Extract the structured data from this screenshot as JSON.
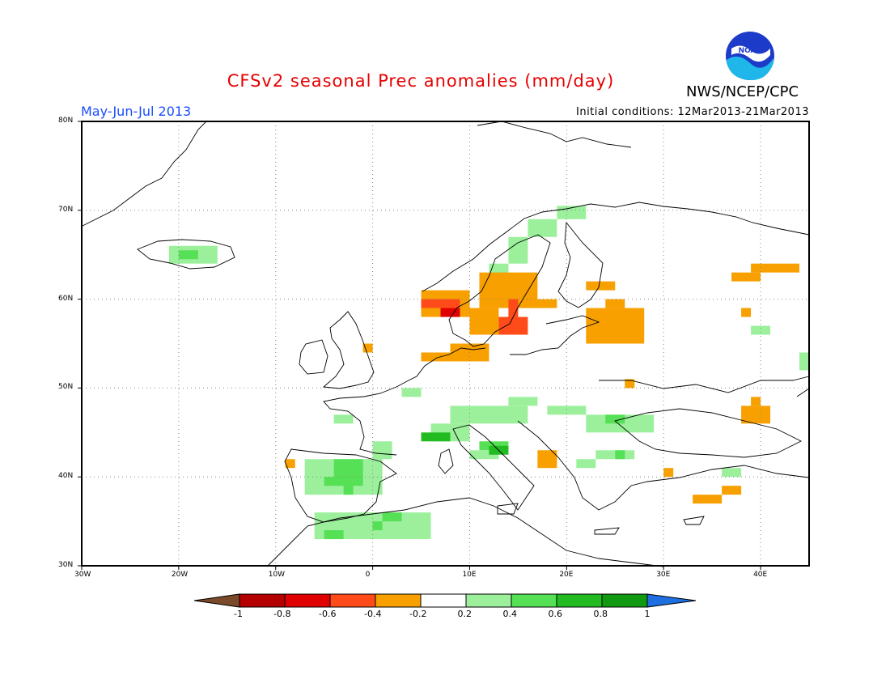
{
  "header": {
    "title": "CFSv2 seasonal Prec anomalies (mm/day)",
    "period": "May-Jun-Jul 2013",
    "initial_conditions": "Initial conditions: 12Mar2013-21Mar2013",
    "agency": "NWS/NCEP/CPC",
    "logo_text": "NOAA"
  },
  "map": {
    "region": "Europe",
    "lon_range": [
      -30,
      45
    ],
    "lat_range": [
      30,
      80
    ],
    "lat_labels": [
      "80N",
      "70N",
      "60N",
      "50N",
      "40N",
      "30N"
    ],
    "lon_labels": [
      "30W",
      "20W",
      "10W",
      "0",
      "10E",
      "20E",
      "30E",
      "40E"
    ],
    "gridlines": "dotted"
  },
  "colorbar": {
    "ticks": [
      "-1",
      "-0.8",
      "-0.6",
      "-0.4",
      "-0.2",
      "0.2",
      "0.4",
      "0.6",
      "0.8",
      "1"
    ],
    "colors": [
      "#7a4a2a",
      "#b40000",
      "#e00000",
      "#ff4a1a",
      "#f7a000",
      "#ffffff",
      "#9cf09c",
      "#55e055",
      "#22bb22",
      "#119911",
      "#1e6fe0"
    ]
  }
}
